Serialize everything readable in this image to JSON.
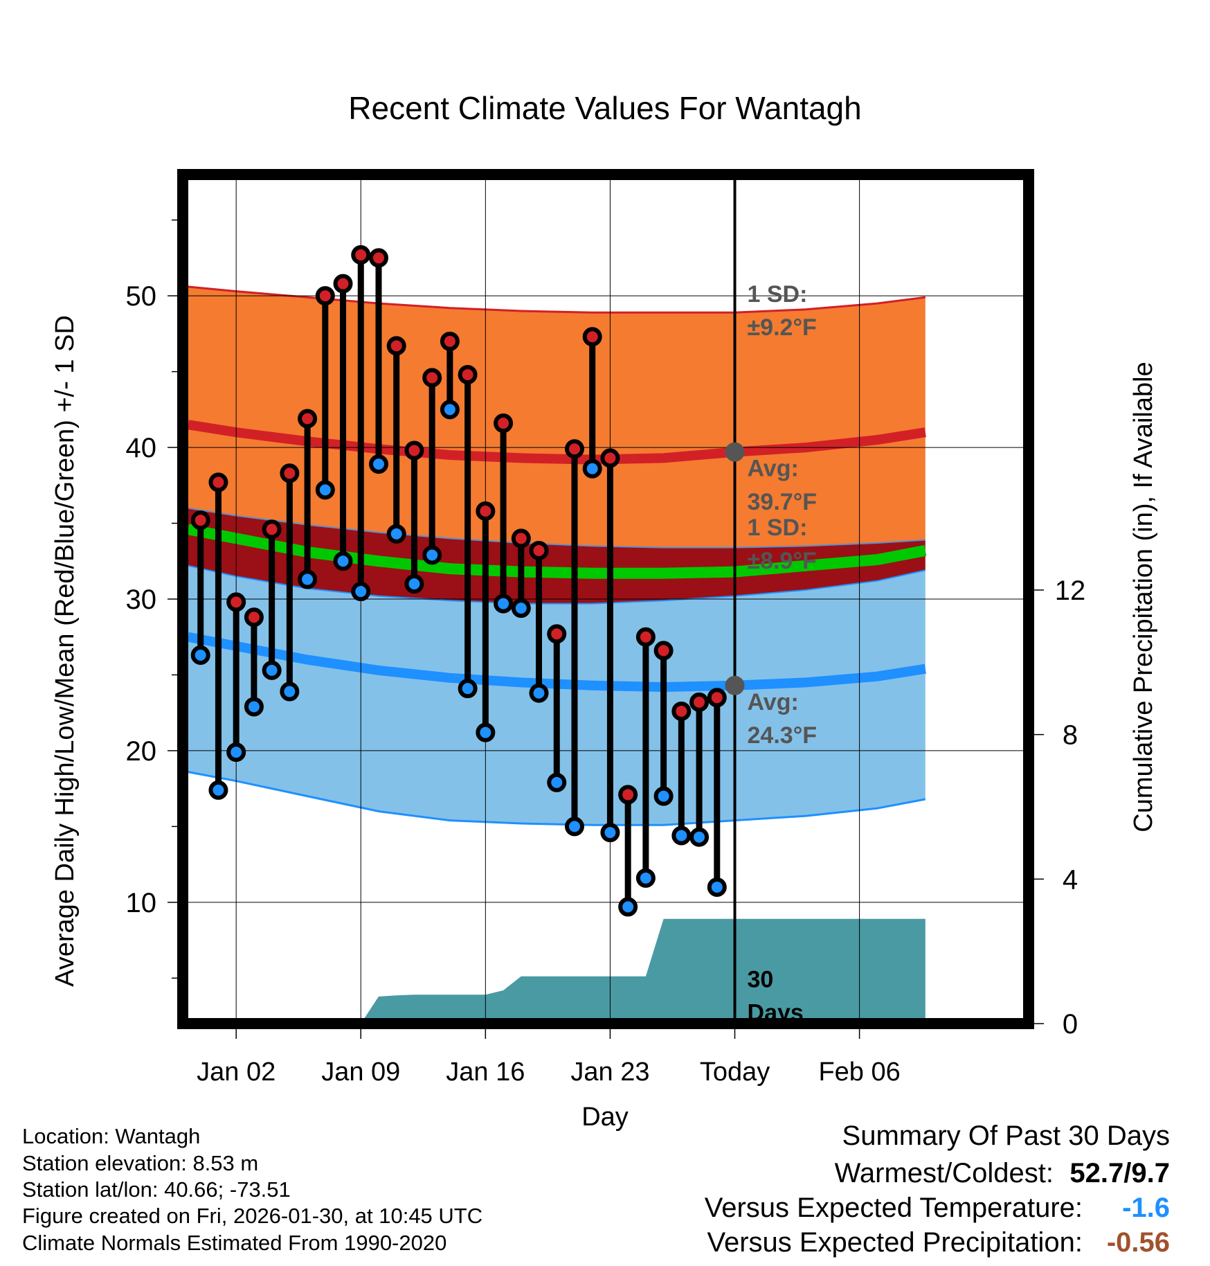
{
  "chart_data": {
    "type": "line",
    "title": "Recent Climate Values For Wantagh",
    "xlabel": "Day",
    "ylabel": "Average Daily High/Low/Mean (Red/Blue/Green) +/- 1 SD",
    "y2label": "Cumulative Precipitation (in), If Available",
    "xlim": [
      -3,
      44.5
    ],
    "ylim": [
      2,
      58
    ],
    "y2lim": [
      0,
      23.5
    ],
    "x_ticks": [
      {
        "x": 0,
        "label": "Jan 02"
      },
      {
        "x": 7,
        "label": "Jan 09"
      },
      {
        "x": 14,
        "label": "Jan 16"
      },
      {
        "x": 21,
        "label": "Jan 23"
      },
      {
        "x": 28,
        "label": "Today"
      },
      {
        "x": 35,
        "label": "Feb 06"
      }
    ],
    "y_ticks": [
      10,
      20,
      30,
      40,
      50
    ],
    "y2_ticks": [
      0,
      4,
      8,
      12
    ],
    "grid": true,
    "today_x": 28,
    "today_label": "30 Days",
    "normal_high": {
      "x": [
        -2.7,
        0,
        4,
        8,
        12,
        16,
        20,
        24,
        28,
        32,
        36,
        38.7
      ],
      "avg": [
        41.5,
        41.0,
        40.4,
        39.9,
        39.5,
        39.3,
        39.2,
        39.3,
        39.7,
        40.0,
        40.5,
        41.0
      ],
      "upper": [
        50.6,
        50.3,
        49.9,
        49.5,
        49.2,
        49.0,
        48.9,
        48.9,
        48.9,
        49.1,
        49.5,
        49.9
      ],
      "lower": [
        36.0,
        35.5,
        34.9,
        34.4,
        34.0,
        33.7,
        33.5,
        33.4,
        33.4,
        33.5,
        33.7,
        33.9
      ]
    },
    "normal_low": {
      "x": [
        -2.7,
        0,
        4,
        8,
        12,
        16,
        20,
        24,
        28,
        32,
        36,
        38.7
      ],
      "avg": [
        27.5,
        26.9,
        26.0,
        25.3,
        24.8,
        24.5,
        24.3,
        24.2,
        24.3,
        24.5,
        24.9,
        25.4
      ],
      "upper": [
        32.2,
        31.5,
        30.7,
        30.2,
        29.9,
        29.7,
        29.7,
        29.9,
        30.2,
        30.6,
        31.2,
        31.9
      ],
      "lower": [
        18.6,
        18.0,
        17.0,
        16.0,
        15.4,
        15.2,
        15.1,
        15.1,
        15.4,
        15.7,
        16.2,
        16.8
      ]
    },
    "normal_mean": {
      "x": [
        -2.7,
        0,
        4,
        8,
        12,
        16,
        20,
        24,
        28,
        32,
        36,
        38.7
      ],
      "avg": [
        34.6,
        34.0,
        33.1,
        32.5,
        32.0,
        31.8,
        31.7,
        31.7,
        31.8,
        32.2,
        32.6,
        33.2
      ]
    },
    "observed": {
      "x": [
        -2,
        -1,
        0,
        1,
        2,
        3,
        4,
        5,
        6,
        7,
        8,
        9,
        10,
        11,
        12,
        13,
        14,
        15,
        16,
        17,
        18,
        19,
        20,
        21,
        22,
        23,
        24,
        25,
        26,
        27
      ],
      "high": [
        35.2,
        37.7,
        29.8,
        28.8,
        34.6,
        38.3,
        41.9,
        50.0,
        50.8,
        52.7,
        52.5,
        46.7,
        39.8,
        44.6,
        47.0,
        44.8,
        35.8,
        41.6,
        34.0,
        33.2,
        27.7,
        39.9,
        47.3,
        39.3,
        17.1,
        27.5,
        26.6,
        22.6,
        23.2,
        23.5
      ],
      "low": [
        26.3,
        17.4,
        19.9,
        22.9,
        25.3,
        23.9,
        31.3,
        37.2,
        32.5,
        30.5,
        38.9,
        34.3,
        31.0,
        32.9,
        42.5,
        24.1,
        21.2,
        29.7,
        29.4,
        23.8,
        17.9,
        15.0,
        38.6,
        14.6,
        9.7,
        11.6,
        17.0,
        14.4,
        14.3,
        11.0
      ]
    },
    "precip_cumulative": {
      "x": [
        7.0,
        8.0,
        9.0,
        10.0,
        11.0,
        12.0,
        13.0,
        14.0,
        15.0,
        16.0,
        17.0,
        18.0,
        19.0,
        20.0,
        21.0,
        22.0,
        23.0,
        24.0,
        28.0,
        38.7
      ],
      "values": [
        0.0,
        0.75,
        0.78,
        0.8,
        0.8,
        0.8,
        0.8,
        0.8,
        0.92,
        1.31,
        1.31,
        1.31,
        1.31,
        1.31,
        1.31,
        1.31,
        1.31,
        2.9,
        2.9,
        2.9
      ]
    },
    "annotations": {
      "high_sd": "1 SD:",
      "high_sd_val": "±9.2°F",
      "high_avg": "Avg:",
      "high_avg_val": "39.7°F",
      "low_sd": "1 SD:",
      "low_sd_val": "±8.9°F",
      "low_avg": "Avg:",
      "low_avg_val": "24.3°F",
      "today_count": "30",
      "today_unit": "Days"
    },
    "colors": {
      "high_band": "#f47b30",
      "high_line": "#d22027",
      "low_band": "#84c1e8",
      "low_line": "#1e90ff",
      "overlap": "#9a1016",
      "mean_line": "#00c800",
      "precip": "#4a9aa3",
      "dot_high": "#d22027",
      "dot_low": "#1e90ff",
      "annotation": "#555555"
    }
  },
  "info": {
    "location": "Location: Wantagh",
    "elevation": "Station elevation: 8.53 m",
    "latlon": "Station lat/lon: 40.66; -73.51",
    "created": "Figure created on Fri, 2026-01-30, at 10:45 UTC",
    "normals": "Climate Normals Estimated From 1990-2020"
  },
  "summary": {
    "title": "Summary Of Past 30 Days",
    "warm_cold_label": "Warmest/Coldest:",
    "warm_cold_value": "52.7/9.7",
    "temp_label": "Versus Expected Temperature:",
    "temp_value": "-1.6",
    "temp_color": "#1e90ff",
    "precip_label": "Versus Expected Precipitation:",
    "precip_value": "-0.56",
    "precip_color": "#a0522d"
  }
}
